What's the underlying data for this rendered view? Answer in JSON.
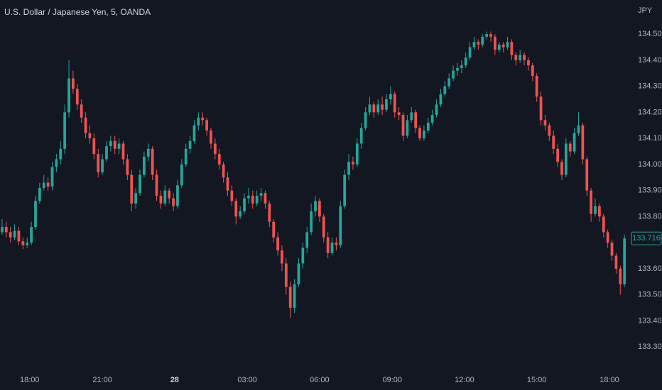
{
  "chart_data": {
    "type": "candlestick",
    "title": "U.S. Dollar / Japanese Yen, 5, OANDA",
    "currency": "JPY",
    "up_color": "#26a69a",
    "down_color": "#ef5350",
    "grid": false,
    "xlim": [
      -0.5,
      150.5
    ],
    "xticks": [
      {
        "value": 6.6,
        "label": "18:00"
      },
      {
        "value": 24,
        "label": "21:00"
      },
      {
        "value": 41.3,
        "label": "28",
        "bold": true
      },
      {
        "value": 58.7,
        "label": "03:00"
      },
      {
        "value": 76,
        "label": "06:00"
      },
      {
        "value": 93.4,
        "label": "09:00"
      },
      {
        "value": 110.7,
        "label": "12:00"
      },
      {
        "value": 128,
        "label": "15:00"
      },
      {
        "value": 145.4,
        "label": "18:00"
      }
    ],
    "ylim": [
      133.216,
      134.631
    ],
    "yticks": [
      {
        "value": 134.5,
        "label": "134.500"
      },
      {
        "value": 134.4,
        "label": "134.400"
      },
      {
        "value": 134.3,
        "label": "134.300"
      },
      {
        "value": 134.2,
        "label": "134.200"
      },
      {
        "value": 134.1,
        "label": "134.100"
      },
      {
        "value": 134.0,
        "label": "134.000"
      },
      {
        "value": 133.9,
        "label": "133.900"
      },
      {
        "value": 133.8,
        "label": "133.800"
      },
      {
        "value": 133.7,
        "label": "133.700"
      },
      {
        "value": 133.6,
        "label": "133.600"
      },
      {
        "value": 133.5,
        "label": "133.500"
      },
      {
        "value": 133.4,
        "label": "133.400"
      },
      {
        "value": 133.3,
        "label": "133.300"
      }
    ],
    "ohlc": [
      [
        133.74,
        133.79,
        133.73,
        133.76
      ],
      [
        133.76,
        133.78,
        133.72,
        133.74
      ],
      [
        133.74,
        133.76,
        133.7,
        133.72
      ],
      [
        133.72,
        133.77,
        133.71,
        133.745
      ],
      [
        133.745,
        133.76,
        133.69,
        133.705
      ],
      [
        133.705,
        133.72,
        133.675,
        133.69
      ],
      [
        133.69,
        133.72,
        133.68,
        133.7
      ],
      [
        133.7,
        133.78,
        133.69,
        133.76
      ],
      [
        133.76,
        133.88,
        133.75,
        133.86
      ],
      [
        133.86,
        133.93,
        133.85,
        133.91
      ],
      [
        133.91,
        133.96,
        133.9,
        133.93
      ],
      [
        133.93,
        133.95,
        133.9,
        133.915
      ],
      [
        133.915,
        134.01,
        133.9,
        133.99
      ],
      [
        133.99,
        134.04,
        133.97,
        134.02
      ],
      [
        134.02,
        134.09,
        134.0,
        134.06
      ],
      [
        134.06,
        134.23,
        134.04,
        134.2
      ],
      [
        134.2,
        134.4,
        134.18,
        134.33
      ],
      [
        134.33,
        134.36,
        134.27,
        134.29
      ],
      [
        134.29,
        134.31,
        134.21,
        134.23
      ],
      [
        134.23,
        134.25,
        134.16,
        134.18
      ],
      [
        134.18,
        134.2,
        134.1,
        134.12
      ],
      [
        134.12,
        134.15,
        134.08,
        134.1
      ],
      [
        134.1,
        134.12,
        134.02,
        134.04
      ],
      [
        134.04,
        134.06,
        133.95,
        133.97
      ],
      [
        133.97,
        134.04,
        133.96,
        134.02
      ],
      [
        134.02,
        134.09,
        134.01,
        134.07
      ],
      [
        134.07,
        134.11,
        134.05,
        134.09
      ],
      [
        134.09,
        134.11,
        134.04,
        134.06
      ],
      [
        134.06,
        134.1,
        134.04,
        134.08
      ],
      [
        134.08,
        134.09,
        134.0,
        134.02
      ],
      [
        134.02,
        134.04,
        133.94,
        133.96
      ],
      [
        133.96,
        133.98,
        133.82,
        133.85
      ],
      [
        133.85,
        133.91,
        133.83,
        133.89
      ],
      [
        133.89,
        133.98,
        133.88,
        133.96
      ],
      [
        133.96,
        134.05,
        133.95,
        134.03
      ],
      [
        134.03,
        134.08,
        134.01,
        134.06
      ],
      [
        134.06,
        134.07,
        133.94,
        133.96
      ],
      [
        133.96,
        133.98,
        133.86,
        133.88
      ],
      [
        133.88,
        133.9,
        133.83,
        133.85
      ],
      [
        133.85,
        133.92,
        133.84,
        133.9
      ],
      [
        133.9,
        133.91,
        133.85,
        133.87
      ],
      [
        133.87,
        133.89,
        133.82,
        133.84
      ],
      [
        133.84,
        133.94,
        133.83,
        133.92
      ],
      [
        133.92,
        134.02,
        133.91,
        134.0
      ],
      [
        134.0,
        134.08,
        133.99,
        134.06
      ],
      [
        134.06,
        134.11,
        134.04,
        134.09
      ],
      [
        134.09,
        134.17,
        134.08,
        134.15
      ],
      [
        134.15,
        134.2,
        134.13,
        134.18
      ],
      [
        134.18,
        134.2,
        134.15,
        134.17
      ],
      [
        134.17,
        134.18,
        134.11,
        134.13
      ],
      [
        134.13,
        134.14,
        134.06,
        134.08
      ],
      [
        134.08,
        134.1,
        134.02,
        134.04
      ],
      [
        134.04,
        134.06,
        133.98,
        134.0
      ],
      [
        134.0,
        134.01,
        133.93,
        133.95
      ],
      [
        133.95,
        133.97,
        133.88,
        133.9
      ],
      [
        133.9,
        133.92,
        133.84,
        133.86
      ],
      [
        133.86,
        133.87,
        133.77,
        133.8
      ],
      [
        133.8,
        133.84,
        133.79,
        133.82
      ],
      [
        133.82,
        133.89,
        133.81,
        133.87
      ],
      [
        133.87,
        133.91,
        133.85,
        133.88
      ],
      [
        133.88,
        133.9,
        133.83,
        133.85
      ],
      [
        133.85,
        133.9,
        133.84,
        133.88
      ],
      [
        133.88,
        133.91,
        133.86,
        133.89
      ],
      [
        133.89,
        133.9,
        133.83,
        133.85
      ],
      [
        133.85,
        133.86,
        133.76,
        133.78
      ],
      [
        133.78,
        133.79,
        133.7,
        133.72
      ],
      [
        133.72,
        133.74,
        133.65,
        133.67
      ],
      [
        133.67,
        133.69,
        133.59,
        133.62
      ],
      [
        133.62,
        133.64,
        133.5,
        133.53
      ],
      [
        133.53,
        133.55,
        133.41,
        133.45
      ],
      [
        133.45,
        133.56,
        133.43,
        133.54
      ],
      [
        133.54,
        133.64,
        133.53,
        133.62
      ],
      [
        133.62,
        133.7,
        133.6,
        133.68
      ],
      [
        133.68,
        133.76,
        133.66,
        133.74
      ],
      [
        133.74,
        133.85,
        133.73,
        133.82
      ],
      [
        133.82,
        133.88,
        133.8,
        133.86
      ],
      [
        133.86,
        133.87,
        133.78,
        133.8
      ],
      [
        133.8,
        133.81,
        133.7,
        133.72
      ],
      [
        133.72,
        133.74,
        133.64,
        133.66
      ],
      [
        133.66,
        133.72,
        133.65,
        133.7
      ],
      [
        133.7,
        133.72,
        133.67,
        133.69
      ],
      [
        133.69,
        133.86,
        133.68,
        133.84
      ],
      [
        133.84,
        133.98,
        133.83,
        133.96
      ],
      [
        133.96,
        134.04,
        133.94,
        134.01
      ],
      [
        134.01,
        134.03,
        133.98,
        134.0
      ],
      [
        134.0,
        134.1,
        133.99,
        134.08
      ],
      [
        134.08,
        134.16,
        134.06,
        134.14
      ],
      [
        134.14,
        134.22,
        134.13,
        134.2
      ],
      [
        134.2,
        134.26,
        134.19,
        134.23
      ],
      [
        134.23,
        134.24,
        134.18,
        134.2
      ],
      [
        134.2,
        134.25,
        134.19,
        134.23
      ],
      [
        134.23,
        134.26,
        134.19,
        134.21
      ],
      [
        134.21,
        134.27,
        134.2,
        134.25
      ],
      [
        134.25,
        134.3,
        134.23,
        134.27
      ],
      [
        134.27,
        134.28,
        134.18,
        134.2
      ],
      [
        134.2,
        134.22,
        134.17,
        134.19
      ],
      [
        134.19,
        134.2,
        134.09,
        134.11
      ],
      [
        134.11,
        134.19,
        134.1,
        134.17
      ],
      [
        134.17,
        134.22,
        134.16,
        134.2
      ],
      [
        134.2,
        134.21,
        134.12,
        134.14
      ],
      [
        134.14,
        134.15,
        134.09,
        134.1
      ],
      [
        134.1,
        134.15,
        134.09,
        134.13
      ],
      [
        134.13,
        134.18,
        134.12,
        134.16
      ],
      [
        134.16,
        134.21,
        134.15,
        134.19
      ],
      [
        134.19,
        134.25,
        134.18,
        134.23
      ],
      [
        134.23,
        134.29,
        134.22,
        134.27
      ],
      [
        134.27,
        134.32,
        134.26,
        134.3
      ],
      [
        134.3,
        134.35,
        134.29,
        134.33
      ],
      [
        134.33,
        134.38,
        134.32,
        134.36
      ],
      [
        134.36,
        134.39,
        134.34,
        134.37
      ],
      [
        134.37,
        134.4,
        134.35,
        134.38
      ],
      [
        134.38,
        134.43,
        134.37,
        134.41
      ],
      [
        134.41,
        134.47,
        134.4,
        134.45
      ],
      [
        134.45,
        134.49,
        134.44,
        134.47
      ],
      [
        134.47,
        134.48,
        134.44,
        134.46
      ],
      [
        134.46,
        134.5,
        134.45,
        134.49
      ],
      [
        134.49,
        134.51,
        134.48,
        134.5
      ],
      [
        134.5,
        134.51,
        134.47,
        134.49
      ],
      [
        134.49,
        134.5,
        134.42,
        134.44
      ],
      [
        134.44,
        134.47,
        134.43,
        134.46
      ],
      [
        134.46,
        134.47,
        134.43,
        134.45
      ],
      [
        134.45,
        134.49,
        134.44,
        134.47
      ],
      [
        134.47,
        134.48,
        134.4,
        134.42
      ],
      [
        134.42,
        134.43,
        134.38,
        134.4
      ],
      [
        134.4,
        134.44,
        134.39,
        134.42
      ],
      [
        134.42,
        134.43,
        134.38,
        134.4
      ],
      [
        134.4,
        134.41,
        134.36,
        134.38
      ],
      [
        134.38,
        134.39,
        134.32,
        134.34
      ],
      [
        134.34,
        134.35,
        134.24,
        134.26
      ],
      [
        134.26,
        134.28,
        134.15,
        134.17
      ],
      [
        134.17,
        134.19,
        134.13,
        134.15
      ],
      [
        134.15,
        134.16,
        134.09,
        134.11
      ],
      [
        134.11,
        134.13,
        134.04,
        134.06
      ],
      [
        134.06,
        134.08,
        133.99,
        134.01
      ],
      [
        134.01,
        134.02,
        133.94,
        133.96
      ],
      [
        133.96,
        134.1,
        133.95,
        134.08
      ],
      [
        134.08,
        134.09,
        134.03,
        134.05
      ],
      [
        134.05,
        134.14,
        134.04,
        134.12
      ],
      [
        134.12,
        134.2,
        134.11,
        134.15
      ],
      [
        134.15,
        134.16,
        134.0,
        134.02
      ],
      [
        134.02,
        134.03,
        133.88,
        133.9
      ],
      [
        133.9,
        133.91,
        133.78,
        133.81
      ],
      [
        133.81,
        133.87,
        133.8,
        133.84
      ],
      [
        133.84,
        133.85,
        133.78,
        133.8
      ],
      [
        133.8,
        133.81,
        133.72,
        133.74
      ],
      [
        133.74,
        133.75,
        133.68,
        133.7
      ],
      [
        133.7,
        133.71,
        133.63,
        133.65
      ],
      [
        133.65,
        133.66,
        133.58,
        133.6
      ],
      [
        133.6,
        133.61,
        133.5,
        133.54
      ],
      [
        133.54,
        133.73,
        133.53,
        133.716
      ]
    ]
  }
}
